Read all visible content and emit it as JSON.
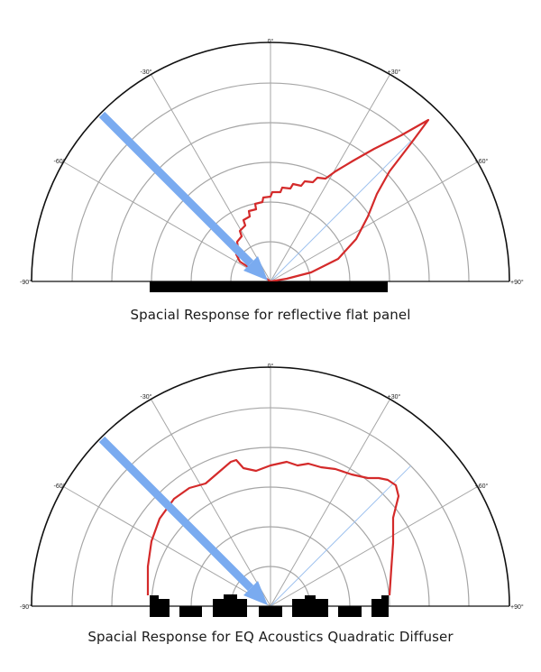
{
  "angle_labels": {
    "top": "0°",
    "left_30": "-30°",
    "right_30": "+30°",
    "left_60": "-60°",
    "right_60": "+60°",
    "left_90": "-90°",
    "right_90": "+90°"
  },
  "diagrams": [
    {
      "caption": "Spacial Response for reflective flat panel",
      "surface": "flat-panel",
      "response_color": "#d42a2a",
      "incident_color": "#7aabf0"
    },
    {
      "caption": "Spacial Response for EQ Acoustics Quadratic Diffuser",
      "surface": "quadratic-diffuser",
      "response_color": "#d42a2a",
      "incident_color": "#7aabf0"
    }
  ]
}
